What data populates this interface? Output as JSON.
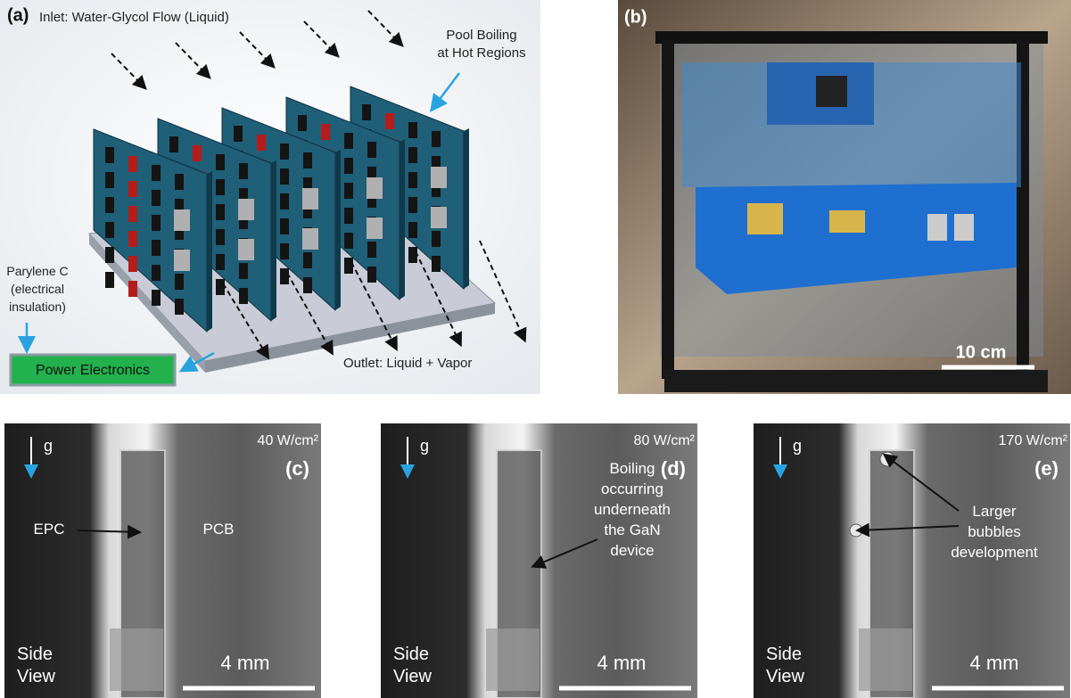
{
  "panel_a": {
    "label": "(a)",
    "inlet": "Inlet: Water-Glycol Flow (Liquid)",
    "pool_boiling": [
      "Pool Boiling",
      "at Hot Regions"
    ],
    "coating": [
      "Parylene C",
      "(electrical",
      "insulation)"
    ],
    "device": "Power Electronics",
    "outlet": "Outlet: Liquid + Vapor"
  },
  "panel_b": {
    "label": "(b)",
    "scale": "10 cm"
  },
  "panels": [
    {
      "label": "(c)",
      "gravity": "g",
      "heat_flux": "40 W/cm²",
      "annotations": [
        {
          "lines": [
            "EPC"
          ]
        },
        {
          "lines": [
            "PCB"
          ]
        }
      ],
      "view": [
        "Side",
        "View"
      ],
      "scale": "4 mm"
    },
    {
      "label": "(d)",
      "gravity": "g",
      "heat_flux": "80 W/cm²",
      "annotations": [
        {
          "lines": [
            "Boiling",
            "occurring",
            "underneath",
            "the GaN",
            "device"
          ]
        }
      ],
      "view": [
        "Side",
        "View"
      ],
      "scale": "4 mm"
    },
    {
      "label": "(e)",
      "gravity": "g",
      "heat_flux": "170 W/cm²",
      "annotations": [
        {
          "lines": [
            "Larger",
            "bubbles",
            "development"
          ]
        }
      ],
      "view": [
        "Side",
        "View"
      ],
      "scale": "4 mm"
    }
  ]
}
